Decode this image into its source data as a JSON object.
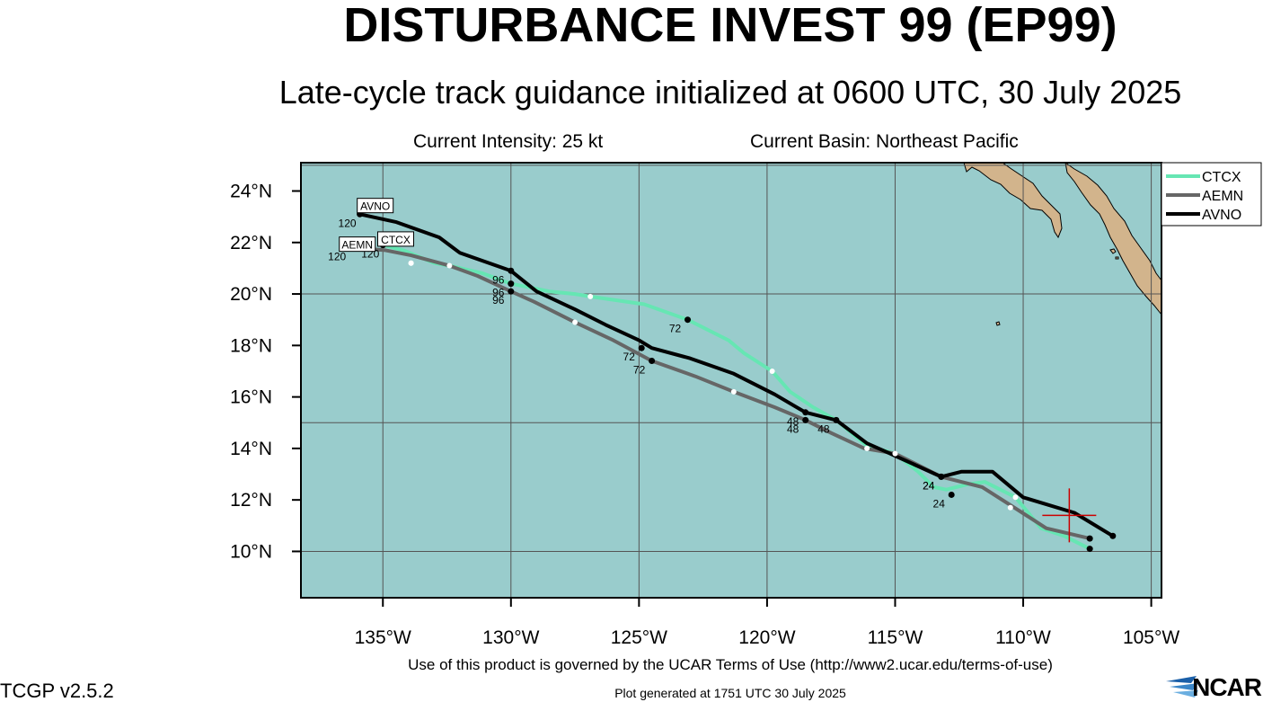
{
  "title": "DISTURBANCE INVEST 99 (EP99)",
  "subtitle": "Late-cycle track guidance initialized at 0600 UTC, 30 July 2025",
  "current_intensity": "Current Intensity: 25 kt",
  "current_basin": "Current Basin: Northeast Pacific",
  "footer": {
    "terms": "Use of this product is governed by the UCAR Terms of Use (http://www2.ucar.edu/terms-of-use)",
    "version": "TCGP v2.5.2",
    "generated": "Plot generated at 1751 UTC   30 July 2025",
    "logo": "NCAR"
  },
  "colors": {
    "ocean": "#99cccc",
    "land": "#d2b48c",
    "grid": "#555555",
    "CTCX": "#66e6b3",
    "AEMN": "#666666",
    "AVNO": "#000000",
    "current_position": "#cc0000"
  },
  "chart_data": {
    "type": "line",
    "xlim": [
      -138.2,
      -104.6
    ],
    "ylim": [
      8.2,
      25.1
    ],
    "x_ticks": [
      -135,
      -130,
      -125,
      -120,
      -115,
      -110,
      -105
    ],
    "x_tick_labels": [
      "135°W",
      "130°W",
      "125°W",
      "120°W",
      "115°W",
      "110°W",
      "105°W"
    ],
    "y_ticks": [
      10,
      12,
      14,
      16,
      18,
      20,
      22,
      24
    ],
    "y_tick_labels": [
      "10°N",
      "12°N",
      "14°N",
      "16°N",
      "18°N",
      "20°N",
      "22°N",
      "24°N"
    ],
    "grid": true,
    "legend_position": "top-right",
    "current_position": {
      "lon": -108.2,
      "lat": 11.4
    },
    "series": [
      {
        "name": "CTCX",
        "lon": [
          -107.4,
          -108.4,
          -109.3,
          -110.3,
          -110.5,
          -111.5,
          -112.2,
          -113.0,
          -113.5,
          -114.1,
          -115.0,
          -116.1,
          -117.3,
          -118.2,
          -119.1,
          -119.8,
          -120.9,
          -121.5,
          -123.1,
          -124.8,
          -126.9,
          -127.5,
          -128.5,
          -130.0,
          -131.1,
          -132.4,
          -133.0,
          -134.2,
          -135.0
        ],
        "lat": [
          10.1,
          10.6,
          10.9,
          12.1,
          12.2,
          12.7,
          12.6,
          12.4,
          12.5,
          13.1,
          13.8,
          14.1,
          15.1,
          15.6,
          16.2,
          17.0,
          17.7,
          18.2,
          19.0,
          19.6,
          19.9,
          20.0,
          20.1,
          20.4,
          20.8,
          21.1,
          21.2,
          21.7,
          21.9
        ],
        "labels": [
          {
            "lon": -112.8,
            "lat": 12.2,
            "text": "24"
          },
          {
            "lon": -117.3,
            "lat": 15.1,
            "text": "48"
          },
          {
            "lon": -123.1,
            "lat": 19.0,
            "text": "72"
          },
          {
            "lon": -130.0,
            "lat": 20.4,
            "text": "96"
          },
          {
            "lon": -135.0,
            "lat": 21.9,
            "text": "120"
          }
        ],
        "intermediate_points": [
          {
            "lon": -110.3,
            "lat": 12.1
          },
          {
            "lon": -115.0,
            "lat": 13.8
          },
          {
            "lon": -119.8,
            "lat": 17.0
          },
          {
            "lon": -126.9,
            "lat": 19.9
          },
          {
            "lon": -133.9,
            "lat": 21.2
          },
          {
            "lon": -132.4,
            "lat": 21.1
          }
        ]
      },
      {
        "name": "AEMN",
        "lon": [
          -107.4,
          -109.1,
          -110.5,
          -111.6,
          -113.2,
          -115.0,
          -116.2,
          -117.5,
          -118.5,
          -119.7,
          -121.3,
          -122.8,
          -124.5,
          -126.0,
          -127.5,
          -129.1,
          -130.0,
          -131.3,
          -132.4,
          -133.9,
          -134.9,
          -136.3
        ],
        "lat": [
          10.5,
          10.9,
          11.8,
          12.5,
          12.9,
          13.8,
          14.0,
          14.6,
          15.1,
          15.6,
          16.2,
          16.8,
          17.4,
          18.2,
          18.9,
          19.7,
          20.1,
          20.7,
          21.1,
          21.5,
          21.7,
          21.8
        ],
        "labels": [
          {
            "lon": -113.2,
            "lat": 12.9,
            "text": "24"
          },
          {
            "lon": -118.5,
            "lat": 15.1,
            "text": "48"
          },
          {
            "lon": -124.5,
            "lat": 17.4,
            "text": "72"
          },
          {
            "lon": -130.0,
            "lat": 20.1,
            "text": "96"
          },
          {
            "lon": -136.3,
            "lat": 21.8,
            "text": "120"
          }
        ],
        "intermediate_points": [
          {
            "lon": -110.5,
            "lat": 11.7
          },
          {
            "lon": -116.1,
            "lat": 14.0
          },
          {
            "lon": -121.3,
            "lat": 16.2
          },
          {
            "lon": -127.5,
            "lat": 18.9
          },
          {
            "lon": -133.9,
            "lat": 21.2
          }
        ]
      },
      {
        "name": "AVNO",
        "lon": [
          -106.5,
          -108.0,
          -110.0,
          -111.2,
          -112.4,
          -113.2,
          -115.2,
          -116.1,
          -117.3,
          -118.5,
          -119.7,
          -121.3,
          -123.0,
          -124.5,
          -125.0,
          -126.3,
          -127.5,
          -129.0,
          -130.0,
          -132.0,
          -132.8,
          -134.5,
          -135.9
        ],
        "lat": [
          10.6,
          11.5,
          12.1,
          13.1,
          13.1,
          12.9,
          13.8,
          14.2,
          15.1,
          15.4,
          16.1,
          16.9,
          17.5,
          17.9,
          18.2,
          18.8,
          19.4,
          20.1,
          20.9,
          21.6,
          22.2,
          22.8,
          23.1
        ],
        "labels": [
          {
            "lon": -113.2,
            "lat": 12.9,
            "text": "24"
          },
          {
            "lon": -118.5,
            "lat": 15.4,
            "text": "48"
          },
          {
            "lon": -124.9,
            "lat": 17.9,
            "text": "72"
          },
          {
            "lon": -130.0,
            "lat": 20.9,
            "text": "96"
          },
          {
            "lon": -135.9,
            "lat": 23.1,
            "text": "120"
          }
        ],
        "intermediate_points": []
      }
    ],
    "model_tags": [
      {
        "text": "AVNO",
        "lon": -135.3,
        "lat": 23.4
      },
      {
        "text": "AEMN",
        "lon": -136.0,
        "lat": 21.9
      },
      {
        "text": "CTCX",
        "lon": -134.5,
        "lat": 22.1
      }
    ]
  }
}
